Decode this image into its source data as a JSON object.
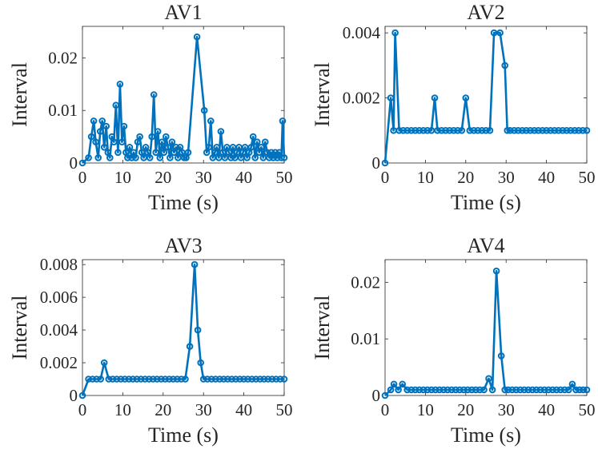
{
  "figure": {
    "colors": {
      "series": "#0072bd",
      "axis": "#262626",
      "grid": "#e3e3e3"
    }
  },
  "chart_data": [
    {
      "type": "line",
      "title": "AV1",
      "xlabel": "Time (s)",
      "ylabel": "Interval",
      "xlim": [
        0,
        50
      ],
      "ylim": [
        0,
        0.026
      ],
      "xticks": [
        0,
        10,
        20,
        30,
        40,
        50
      ],
      "xtick_labels": [
        "0",
        "10",
        "20",
        "30",
        "40",
        "50"
      ],
      "yticks": [
        0,
        0.01,
        0.02
      ],
      "ytick_labels": [
        "0",
        "0.01",
        "0.02"
      ],
      "grid": true,
      "series": [
        {
          "x": [
            0,
            1.5,
            2.2,
            2.8,
            3.3,
            3.9,
            4.4,
            4.9,
            5.4,
            5.9,
            6.3,
            6.8,
            7.3,
            7.8,
            8.3,
            8.8,
            9.3,
            9.8,
            10.3,
            10.8,
            11.2,
            11.7,
            12.2,
            12.7,
            13.2,
            13.7,
            14.2,
            14.7,
            15.2,
            15.7,
            16.2,
            16.7,
            17.2,
            17.7,
            18.2,
            18.7,
            19.2,
            19.7,
            20.2,
            20.7,
            21.2,
            21.7,
            22.2,
            22.7,
            23.2,
            23.7,
            24.2,
            24.7,
            25.2,
            25.7,
            26.2,
            28.4,
            30.2,
            30.8,
            31.3,
            31.8,
            32.3,
            32.8,
            33.3,
            33.8,
            34.3,
            34.8,
            35.3,
            35.8,
            36.3,
            36.8,
            37.3,
            37.8,
            38.3,
            38.8,
            39.3,
            39.8,
            40.3,
            40.8,
            41.3,
            41.8,
            42.3,
            42.8,
            43.3,
            43.8,
            44.3,
            44.8,
            45.3,
            45.8,
            46.3,
            46.8,
            47.3,
            47.8,
            48.3,
            48.8,
            49.3,
            49.6,
            50
          ],
          "y": [
            0,
            0.001,
            0.005,
            0.008,
            0.004,
            0.001,
            0.006,
            0.008,
            0.003,
            0.007,
            0.002,
            0.001,
            0.005,
            0.004,
            0.011,
            0.002,
            0.015,
            0.004,
            0.007,
            0.002,
            0.001,
            0.003,
            0.001,
            0.002,
            0.001,
            0.004,
            0.005,
            0.002,
            0.001,
            0.003,
            0.002,
            0.001,
            0.005,
            0.013,
            0.002,
            0.006,
            0.001,
            0.004,
            0.002,
            0.005,
            0.003,
            0.001,
            0.004,
            0.002,
            0.003,
            0.001,
            0.003,
            0.002,
            0.001,
            0.001,
            0.002,
            0.024,
            0.01,
            0.002,
            0.003,
            0.008,
            0.001,
            0.002,
            0.003,
            0.001,
            0.006,
            0.002,
            0.001,
            0.003,
            0.002,
            0.001,
            0.003,
            0.001,
            0.002,
            0.003,
            0.001,
            0.002,
            0.003,
            0.001,
            0.002,
            0.003,
            0.005,
            0.001,
            0.004,
            0.002,
            0.003,
            0.001,
            0.004,
            0.002,
            0.001,
            0.002,
            0.001,
            0.002,
            0.001,
            0.002,
            0.001,
            0.008,
            0.001
          ]
        }
      ]
    },
    {
      "type": "line",
      "title": "AV2",
      "xlabel": "Time (s)",
      "ylabel": "Interval",
      "xlim": [
        0,
        50
      ],
      "ylim": [
        0,
        0.0042
      ],
      "xticks": [
        0,
        10,
        20,
        30,
        40,
        50
      ],
      "xtick_labels": [
        "0",
        "10",
        "20",
        "30",
        "40",
        "50"
      ],
      "yticks": [
        0,
        0.002,
        0.004
      ],
      "ytick_labels": [
        "0",
        "0.002",
        "0.004"
      ],
      "grid": true,
      "series": [
        {
          "x": [
            0,
            1.4,
            2.1,
            2.5,
            3.5,
            4.5,
            5.5,
            6.5,
            7.5,
            8.5,
            9.5,
            10.5,
            11.5,
            12.3,
            13,
            14,
            15,
            16,
            17,
            18,
            19,
            20,
            21,
            22,
            23,
            24,
            25,
            26,
            27,
            28.5,
            29.7,
            30.3,
            31,
            32,
            33,
            34,
            35,
            36,
            37,
            38,
            39,
            40,
            41,
            42,
            43,
            44,
            45,
            46,
            47,
            48,
            49,
            50
          ],
          "y": [
            0,
            0.002,
            0.001,
            0.004,
            0.001,
            0.001,
            0.001,
            0.001,
            0.001,
            0.001,
            0.001,
            0.001,
            0.001,
            0.002,
            0.001,
            0.001,
            0.001,
            0.001,
            0.001,
            0.001,
            0.001,
            0.002,
            0.001,
            0.001,
            0.001,
            0.001,
            0.001,
            0.001,
            0.004,
            0.004,
            0.003,
            0.001,
            0.001,
            0.001,
            0.001,
            0.001,
            0.001,
            0.001,
            0.001,
            0.001,
            0.001,
            0.001,
            0.001,
            0.001,
            0.001,
            0.001,
            0.001,
            0.001,
            0.001,
            0.001,
            0.001,
            0.001
          ]
        }
      ]
    },
    {
      "type": "line",
      "title": "AV3",
      "xlabel": "Time (s)",
      "ylabel": "Interval",
      "xlim": [
        0,
        50
      ],
      "ylim": [
        0,
        0.0083
      ],
      "xticks": [
        0,
        10,
        20,
        30,
        40,
        50
      ],
      "xtick_labels": [
        "0",
        "10",
        "20",
        "30",
        "40",
        "50"
      ],
      "yticks": [
        0,
        0.002,
        0.004,
        0.006,
        0.008
      ],
      "ytick_labels": [
        "0",
        "0.002",
        "0.004",
        "0.006",
        "0.008"
      ],
      "grid": true,
      "series": [
        {
          "x": [
            0,
            1.5,
            2.5,
            3.5,
            4.5,
            5.4,
            6.5,
            7.5,
            8.5,
            9.5,
            10.5,
            11.5,
            12.5,
            13.5,
            14.5,
            15.5,
            16.5,
            17.5,
            18.5,
            19.5,
            20.5,
            21.5,
            22.5,
            23.5,
            24.5,
            25.5,
            26.6,
            27.8,
            28.6,
            29.3,
            30,
            31,
            32,
            33,
            34,
            35,
            36,
            37,
            38,
            39,
            40,
            41,
            42,
            43,
            44,
            45,
            46,
            47,
            48,
            49,
            50
          ],
          "y": [
            0,
            0.001,
            0.001,
            0.001,
            0.001,
            0.002,
            0.001,
            0.001,
            0.001,
            0.001,
            0.001,
            0.001,
            0.001,
            0.001,
            0.001,
            0.001,
            0.001,
            0.001,
            0.001,
            0.001,
            0.001,
            0.001,
            0.001,
            0.001,
            0.001,
            0.001,
            0.003,
            0.008,
            0.004,
            0.002,
            0.001,
            0.001,
            0.001,
            0.001,
            0.001,
            0.001,
            0.001,
            0.001,
            0.001,
            0.001,
            0.001,
            0.001,
            0.001,
            0.001,
            0.001,
            0.001,
            0.001,
            0.001,
            0.001,
            0.001,
            0.001
          ]
        }
      ]
    },
    {
      "type": "line",
      "title": "AV4",
      "xlabel": "Time (s)",
      "ylabel": "Interval",
      "xlim": [
        0,
        50
      ],
      "ylim": [
        0,
        0.024
      ],
      "xticks": [
        0,
        10,
        20,
        30,
        40,
        50
      ],
      "xtick_labels": [
        "0",
        "10",
        "20",
        "30",
        "40",
        "50"
      ],
      "yticks": [
        0,
        0.01,
        0.02
      ],
      "ytick_labels": [
        "0",
        "0.01",
        "0.02"
      ],
      "grid": true,
      "series": [
        {
          "x": [
            0,
            1.4,
            2.2,
            3.3,
            4.3,
            5.5,
            6.5,
            7.5,
            8.5,
            9.5,
            10.5,
            11.5,
            12.5,
            13.5,
            14.5,
            15.5,
            16.5,
            17.5,
            18.5,
            19.5,
            20.5,
            21.5,
            22.5,
            23.5,
            24.5,
            25.7,
            26.6,
            27.6,
            28.8,
            29.7,
            30.5,
            31.5,
            32.5,
            33.5,
            34.5,
            35.5,
            36.5,
            37.5,
            38.5,
            39.5,
            40.5,
            41.5,
            42.5,
            43.5,
            44.5,
            45.5,
            46.4,
            47.3,
            48.2,
            49.1,
            50
          ],
          "y": [
            0,
            0.001,
            0.002,
            0.001,
            0.002,
            0.001,
            0.001,
            0.001,
            0.001,
            0.001,
            0.001,
            0.001,
            0.001,
            0.001,
            0.001,
            0.001,
            0.001,
            0.001,
            0.001,
            0.001,
            0.001,
            0.001,
            0.001,
            0.001,
            0.001,
            0.003,
            0.001,
            0.022,
            0.007,
            0.001,
            0.001,
            0.001,
            0.001,
            0.001,
            0.001,
            0.001,
            0.001,
            0.001,
            0.001,
            0.001,
            0.001,
            0.001,
            0.001,
            0.001,
            0.001,
            0.001,
            0.002,
            0.001,
            0.001,
            0.001,
            0.001
          ]
        }
      ]
    }
  ]
}
